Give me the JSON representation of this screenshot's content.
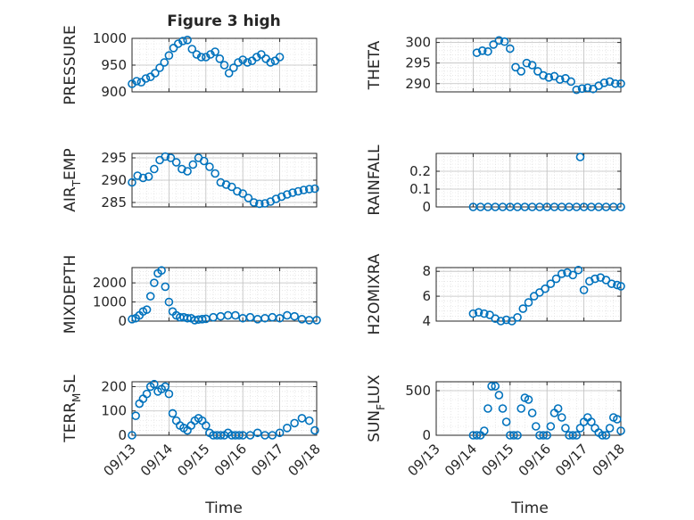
{
  "figure": {
    "title": "Figure 3 high",
    "xlabel": "Time"
  },
  "chart_data": [
    {
      "type": "scatter",
      "ylabel": "PRESSURE",
      "ylim": [
        900,
        1000
      ],
      "yticks": [
        900,
        950,
        1000
      ],
      "xlim": [
        0,
        5
      ],
      "xticks": [
        "09/13",
        "09/14",
        "09/15",
        "09/16",
        "09/17",
        "09/18"
      ],
      "show_xticklabels": false,
      "title": "Figure 3 high",
      "grid": true,
      "color": "#0072BD",
      "x": [
        0.0,
        0.125,
        0.25,
        0.375,
        0.5,
        0.625,
        0.75,
        0.875,
        1.0,
        1.125,
        1.25,
        1.375,
        1.5,
        1.625,
        1.75,
        1.875,
        2.0,
        2.125,
        2.25,
        2.375,
        2.5,
        2.625,
        2.75,
        2.875,
        3.0,
        3.125,
        3.25,
        3.375,
        3.5,
        3.625,
        3.75,
        3.875,
        4.0
      ],
      "y": [
        915,
        920,
        918,
        925,
        928,
        935,
        945,
        955,
        968,
        982,
        990,
        995,
        997,
        980,
        970,
        965,
        965,
        970,
        975,
        962,
        950,
        935,
        945,
        955,
        960,
        955,
        958,
        965,
        970,
        962,
        955,
        958,
        965
      ]
    },
    {
      "type": "scatter",
      "ylabel": "THETA",
      "ylim": [
        288,
        301
      ],
      "yticks": [
        290,
        295,
        300
      ],
      "xlim": [
        0,
        5
      ],
      "xticks": [
        "09/13",
        "09/14",
        "09/15",
        "09/16",
        "09/17",
        "09/18"
      ],
      "show_xticklabels": false,
      "grid": true,
      "color": "#0072BD",
      "x": [
        1.1,
        1.25,
        1.4,
        1.55,
        1.7,
        1.85,
        2.0,
        2.15,
        2.3,
        2.45,
        2.6,
        2.75,
        2.9,
        3.05,
        3.2,
        3.35,
        3.5,
        3.65,
        3.8,
        3.95,
        4.1,
        4.25,
        4.4,
        4.55,
        4.7,
        4.85,
        5.0
      ],
      "y": [
        297.5,
        298,
        297.8,
        299.5,
        300.5,
        300.2,
        298.5,
        294,
        293,
        295,
        294.5,
        293,
        292,
        291.5,
        291.8,
        291,
        291.3,
        290.5,
        288.5,
        288.8,
        289,
        288.7,
        289.5,
        290.2,
        290.5,
        290,
        290
      ]
    },
    {
      "type": "scatter",
      "ylabel": "AIR_TEMP",
      "ylabel_parts": [
        "AIR",
        "T",
        "EMP"
      ],
      "ylim": [
        284,
        296
      ],
      "yticks": [
        285,
        290,
        295
      ],
      "xlim": [
        0,
        5
      ],
      "xticks": [
        "09/13",
        "09/14",
        "09/15",
        "09/16",
        "09/17",
        "09/18"
      ],
      "show_xticklabels": false,
      "grid": true,
      "color": "#0072BD",
      "x": [
        0.0,
        0.15,
        0.3,
        0.45,
        0.6,
        0.75,
        0.9,
        1.05,
        1.2,
        1.35,
        1.5,
        1.65,
        1.8,
        1.95,
        2.1,
        2.25,
        2.4,
        2.55,
        2.7,
        2.85,
        3.0,
        3.15,
        3.3,
        3.45,
        3.6,
        3.75,
        3.9,
        4.05,
        4.2,
        4.35,
        4.5,
        4.65,
        4.8,
        4.95
      ],
      "y": [
        289.5,
        291,
        290.5,
        290.8,
        292.5,
        294.5,
        295.3,
        295,
        294,
        292.5,
        292,
        293.5,
        295,
        294.3,
        293,
        291.5,
        289.5,
        289,
        288.5,
        287.5,
        287,
        286,
        285,
        284.7,
        284.8,
        285.2,
        285.8,
        286.3,
        286.8,
        287.2,
        287.5,
        287.8,
        288.0,
        288.1
      ]
    },
    {
      "type": "scatter",
      "ylabel": "RAINFALL",
      "ylim": [
        0,
        0.3
      ],
      "yticks": [
        0,
        0.1,
        0.2
      ],
      "xlim": [
        0,
        5
      ],
      "xticks": [
        "09/13",
        "09/14",
        "09/15",
        "09/16",
        "09/17",
        "09/18"
      ],
      "show_xticklabels": false,
      "grid": true,
      "color": "#0072BD",
      "x": [
        1.0,
        1.2,
        1.4,
        1.6,
        1.8,
        2.0,
        2.2,
        2.4,
        2.6,
        2.8,
        3.0,
        3.2,
        3.4,
        3.6,
        3.8,
        4.0,
        4.2,
        4.4,
        4.6,
        4.8,
        5.0,
        3.9
      ],
      "y": [
        0,
        0,
        0,
        0,
        0,
        0,
        0,
        0,
        0,
        0,
        0,
        0,
        0,
        0,
        0,
        0,
        0,
        0,
        0,
        0,
        0,
        0.28
      ]
    },
    {
      "type": "scatter",
      "ylabel": "MIXDEPTH",
      "ylim": [
        0,
        2800
      ],
      "yticks": [
        0,
        1000,
        2000
      ],
      "xlim": [
        0,
        5
      ],
      "xticks": [
        "09/13",
        "09/14",
        "09/15",
        "09/16",
        "09/17",
        "09/18"
      ],
      "show_xticklabels": false,
      "grid": true,
      "color": "#0072BD",
      "x": [
        0.0,
        0.1,
        0.2,
        0.3,
        0.4,
        0.5,
        0.6,
        0.7,
        0.8,
        0.9,
        1.0,
        1.1,
        1.2,
        1.3,
        1.4,
        1.5,
        1.6,
        1.7,
        1.8,
        1.9,
        2.0,
        2.2,
        2.4,
        2.6,
        2.8,
        3.0,
        3.2,
        3.4,
        3.6,
        3.8,
        4.0,
        4.2,
        4.4,
        4.6,
        4.8,
        5.0
      ],
      "y": [
        100,
        150,
        300,
        500,
        600,
        1300,
        2000,
        2500,
        2650,
        1800,
        1000,
        500,
        300,
        200,
        200,
        150,
        150,
        50,
        80,
        100,
        120,
        200,
        250,
        300,
        300,
        150,
        200,
        100,
        150,
        200,
        150,
        300,
        250,
        100,
        50,
        50
      ]
    },
    {
      "type": "scatter",
      "ylabel": "H2OMIXRA",
      "ylim": [
        4,
        8.3
      ],
      "yticks": [
        4,
        6,
        8
      ],
      "xlim": [
        0,
        5
      ],
      "xticks": [
        "09/13",
        "09/14",
        "09/15",
        "09/16",
        "09/17",
        "09/18"
      ],
      "show_xticklabels": false,
      "grid": true,
      "color": "#0072BD",
      "x": [
        1.0,
        1.15,
        1.3,
        1.45,
        1.6,
        1.75,
        1.9,
        2.05,
        2.2,
        2.35,
        2.5,
        2.65,
        2.8,
        2.95,
        3.1,
        3.25,
        3.4,
        3.55,
        3.7,
        3.85,
        4.0,
        4.15,
        4.3,
        4.45,
        4.6,
        4.75,
        4.9,
        5.0
      ],
      "y": [
        4.6,
        4.7,
        4.6,
        4.5,
        4.2,
        4.0,
        4.1,
        4.0,
        4.3,
        5.0,
        5.5,
        6.0,
        6.3,
        6.6,
        7.0,
        7.4,
        7.8,
        7.9,
        7.7,
        8.1,
        6.5,
        7.2,
        7.4,
        7.5,
        7.3,
        7.0,
        6.9,
        6.8
      ]
    },
    {
      "type": "scatter",
      "ylabel": "TERR_MSL",
      "ylabel_parts": [
        "TERR",
        "M",
        "SL"
      ],
      "ylim": [
        0,
        220
      ],
      "yticks": [
        0,
        100,
        200
      ],
      "xlim": [
        0,
        5
      ],
      "xticks": [
        "09/13",
        "09/14",
        "09/15",
        "09/16",
        "09/17",
        "09/18"
      ],
      "show_xticklabels": true,
      "grid": true,
      "color": "#0072BD",
      "x": [
        0.0,
        0.1,
        0.2,
        0.3,
        0.4,
        0.5,
        0.6,
        0.7,
        0.8,
        0.9,
        1.0,
        1.1,
        1.2,
        1.3,
        1.4,
        1.5,
        1.6,
        1.7,
        1.8,
        1.9,
        2.0,
        2.1,
        2.2,
        2.3,
        2.4,
        2.5,
        2.6,
        2.7,
        2.8,
        2.9,
        3.0,
        3.2,
        3.4,
        3.6,
        3.8,
        4.0,
        4.2,
        4.4,
        4.6,
        4.8,
        4.95
      ],
      "y": [
        0,
        80,
        130,
        150,
        170,
        200,
        210,
        180,
        190,
        200,
        170,
        90,
        60,
        40,
        30,
        20,
        40,
        60,
        70,
        60,
        40,
        10,
        0,
        0,
        0,
        0,
        10,
        0,
        0,
        0,
        0,
        0,
        10,
        0,
        0,
        10,
        30,
        50,
        70,
        60,
        20
      ]
    },
    {
      "type": "scatter",
      "ylabel": "SUN_FLUX",
      "ylabel_parts": [
        "SUN",
        "F",
        "LUX"
      ],
      "ylim": [
        0,
        600
      ],
      "yticks": [
        0,
        500
      ],
      "xlim": [
        0,
        5
      ],
      "xticks": [
        "09/13",
        "09/14",
        "09/15",
        "09/16",
        "09/17",
        "09/18"
      ],
      "show_xticklabels": true,
      "grid": true,
      "color": "#0072BD",
      "x": [
        1.0,
        1.1,
        1.2,
        1.3,
        1.4,
        1.5,
        1.6,
        1.7,
        1.8,
        1.9,
        2.0,
        2.1,
        2.2,
        2.3,
        2.4,
        2.5,
        2.6,
        2.7,
        2.8,
        2.9,
        3.0,
        3.1,
        3.2,
        3.3,
        3.4,
        3.5,
        3.6,
        3.7,
        3.8,
        3.9,
        4.0,
        4.1,
        4.2,
        4.3,
        4.4,
        4.5,
        4.6,
        4.7,
        4.8,
        4.9,
        5.0
      ],
      "y": [
        0,
        0,
        0,
        50,
        300,
        550,
        550,
        450,
        300,
        150,
        0,
        0,
        0,
        300,
        420,
        400,
        250,
        100,
        0,
        0,
        0,
        100,
        250,
        300,
        200,
        80,
        0,
        0,
        0,
        80,
        150,
        200,
        150,
        80,
        30,
        0,
        0,
        80,
        200,
        180,
        50
      ]
    }
  ]
}
